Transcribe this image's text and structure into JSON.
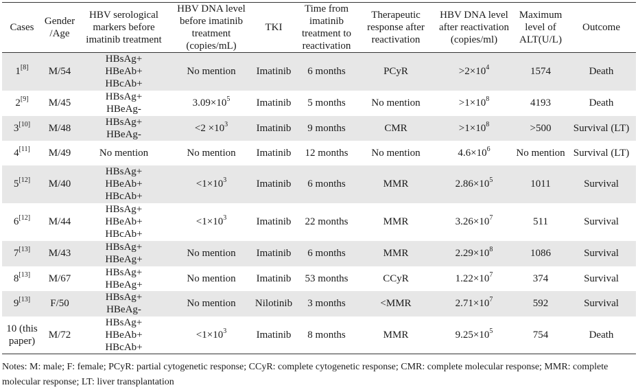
{
  "headers": [
    "Cases",
    "Gender /Age",
    "HBV serological markers before imatinib treatment",
    "HBV DNA level before imatinib treatment (copies/mL)",
    "TKI",
    "Time from imatinib treatment to reactivation",
    "Therapeutic response after reactivation",
    "HBV DNA level after reactivation (copies/ml)",
    "Maximum level of ALT(U/L)",
    "Outcome"
  ],
  "rows": [
    {
      "case": "1",
      "ref": "[8]",
      "gender_age": "M/54",
      "markers": [
        "HBsAg+",
        "HBeAb+",
        "HBcAb+"
      ],
      "dna_before": {
        "text": "No mention",
        "base": "",
        "exp": ""
      },
      "tki": "Imatinib",
      "time": "6 months",
      "response": "PCyR",
      "dna_after": {
        "base": ">2×10",
        "exp": "4"
      },
      "alt": "1574",
      "outcome": "Death",
      "height": 55
    },
    {
      "case": "2",
      "ref": "[9]",
      "gender_age": "M/45",
      "markers": [
        "HBsAg+",
        "HBeAg-"
      ],
      "dna_before": {
        "text": "",
        "base": "3.09×10",
        "exp": "5"
      },
      "tki": "Imatinib",
      "time": "5 months",
      "response": "No mention",
      "dna_after": {
        "base": ">1×10",
        "exp": "8"
      },
      "alt": "4193",
      "outcome": "Death",
      "height": 37
    },
    {
      "case": "3",
      "ref": "[10]",
      "gender_age": "M/48",
      "markers": [
        "HBsAg+",
        "HBeAg-"
      ],
      "dna_before": {
        "text": "",
        "base": "<2 ×10",
        "exp": "3"
      },
      "tki": "Imatinib",
      "time": "9 months",
      "response": "CMR",
      "dna_after": {
        "base": ">1×10",
        "exp": "8"
      },
      "alt": ">500",
      "outcome": "Survival (LT)",
      "height": 36
    },
    {
      "case": "4",
      "ref": "[11]",
      "gender_age": "M/49",
      "markers": [
        "No mention"
      ],
      "dna_before": {
        "text": "No mention",
        "base": "",
        "exp": ""
      },
      "tki": "Imatinib",
      "time": "12 months",
      "response": "No mention",
      "dna_after": {
        "base": "4.6×10",
        "exp": "6"
      },
      "alt": "No mention",
      "outcome": "Survival (LT)",
      "height": 36
    },
    {
      "case": "5",
      "ref": "[12]",
      "gender_age": "M/40",
      "markers": [
        "HBsAg+",
        "HBeAb+",
        "HBcAb+"
      ],
      "dna_before": {
        "text": "",
        "base": "<1×10",
        "exp": "3"
      },
      "tki": "Imatinib",
      "time": "6 months",
      "response": "MMR",
      "dna_after": {
        "base": "2.86×10",
        "exp": "5"
      },
      "alt": "1011",
      "outcome": "Survival",
      "height": 55
    },
    {
      "case": "6",
      "ref": "[12]",
      "gender_age": "M/44",
      "markers": [
        "HBsAg+",
        "HBeAb+",
        "HBcAb+"
      ],
      "dna_before": {
        "text": "",
        "base": "<1×10",
        "exp": "3"
      },
      "tki": "Imatinib",
      "time": "22 months",
      "response": "MMR",
      "dna_after": {
        "base": "3.26×10",
        "exp": "7"
      },
      "alt": "511",
      "outcome": "Survival",
      "height": 55
    },
    {
      "case": "7",
      "ref": "[13]",
      "gender_age": "M/43",
      "markers": [
        "HBsAg+",
        "HBeAg+"
      ],
      "dna_before": {
        "text": "No mention",
        "base": "",
        "exp": ""
      },
      "tki": "Imatinib",
      "time": "6 months",
      "response": "MMR",
      "dna_after": {
        "base": "2.29×10",
        "exp": "8"
      },
      "alt": "1086",
      "outcome": "Survival",
      "height": 37
    },
    {
      "case": "8",
      "ref": "[13]",
      "gender_age": "M/67",
      "markers": [
        "HBsAg+",
        "HBeAg+"
      ],
      "dna_before": {
        "text": "No mention",
        "base": "",
        "exp": ""
      },
      "tki": "Imatinib",
      "time": "53 months",
      "response": "CCyR",
      "dna_after": {
        "base": "1.22×10",
        "exp": "7"
      },
      "alt": "374",
      "outcome": "Survival",
      "height": 36
    },
    {
      "case": "9",
      "ref": "[13]",
      "gender_age": "F/50",
      "markers": [
        "HBsAg+",
        "HBeAg-"
      ],
      "dna_before": {
        "text": "No mention",
        "base": "",
        "exp": ""
      },
      "tki": "Nilotinib",
      "time": "3 months",
      "response": "<MMR",
      "dna_after": {
        "base": "2.71×10",
        "exp": "7"
      },
      "alt": "592",
      "outcome": "Survival",
      "height": 37
    },
    {
      "case": "10 (this paper)",
      "ref": "",
      "gender_age": "M/72",
      "markers": [
        "HBsAg+",
        "HBeAb+",
        "HBcAb+"
      ],
      "dna_before": {
        "text": "",
        "base": "<1×10",
        "exp": "3"
      },
      "tki": "Imatinib",
      "time": "8 months",
      "response": "MMR",
      "dna_after": {
        "base": "9.25×10",
        "exp": "5"
      },
      "alt": "754",
      "outcome": "Death",
      "height": 55
    }
  ],
  "notes": "Notes: M: male; F: female; PCyR: partial cytogenetic response; CCyR: complete cytogenetic response; CMR: complete molecular response; MMR: complete molecular response; LT: liver transplantation"
}
